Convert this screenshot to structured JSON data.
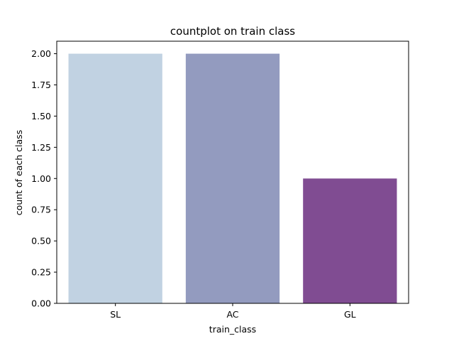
{
  "chart_data": {
    "type": "bar",
    "title": "countplot on train class",
    "xlabel": "train_class",
    "ylabel": "count of each class",
    "categories": [
      "SL",
      "AC",
      "GL"
    ],
    "values": [
      2,
      2,
      1
    ],
    "colors": [
      "#c1d2e2",
      "#939bbf",
      "#804c92"
    ],
    "ylim": [
      0,
      2.1
    ],
    "yticks": [
      0.0,
      0.25,
      0.5,
      0.75,
      1.0,
      1.25,
      1.5,
      1.75,
      2.0
    ],
    "ytick_labels": [
      "0.00",
      "0.25",
      "0.50",
      "0.75",
      "1.00",
      "1.25",
      "1.50",
      "1.75",
      "2.00"
    ],
    "grid": false,
    "legend": "none"
  }
}
